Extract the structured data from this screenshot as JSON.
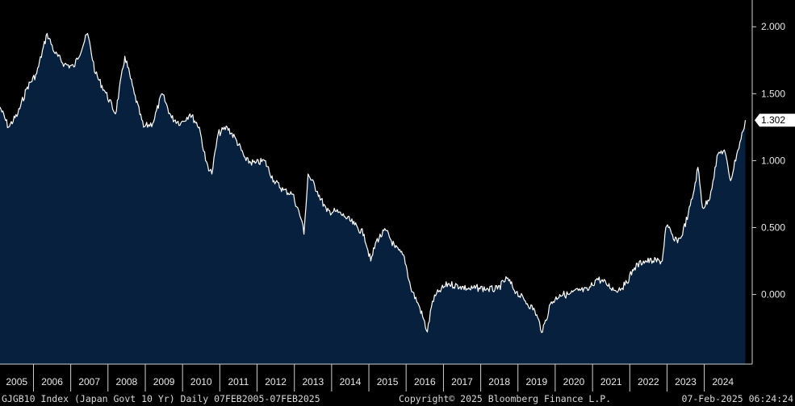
{
  "footer": {
    "left": "GJGB10 Index (Japan Govt 10 Yr)  Daily 07FEB2005-07FEB2025",
    "center": "Copyright© 2025 Bloomberg Finance L.P.",
    "right": "07-Feb-2025 06:24:24"
  },
  "colors": {
    "background": "#000000",
    "fill": "#06203d",
    "line": "#ffffff",
    "axis": "#d0d0d0"
  },
  "chart_data": {
    "type": "area",
    "series": [
      {
        "x": [
          "2005-02-07",
          "2005-05-01",
          "2005-08-01",
          "2005-11-01",
          "2006-02-01",
          "2006-05-15",
          "2006-08-01",
          "2006-11-01",
          "2007-02-01",
          "2007-06-15",
          "2007-09-01",
          "2007-12-01",
          "2008-03-15",
          "2008-06-15",
          "2008-09-15",
          "2008-12-15",
          "2009-03-15",
          "2009-06-15",
          "2009-09-15",
          "2009-12-15",
          "2010-03-15",
          "2010-06-15",
          "2010-08-15",
          "2010-10-15",
          "2010-12-15",
          "2011-03-15",
          "2011-06-15",
          "2011-09-15",
          "2011-12-15",
          "2012-03-15",
          "2012-06-15",
          "2012-09-15",
          "2012-12-15",
          "2013-03-15",
          "2013-04-05",
          "2013-05-15",
          "2013-08-15",
          "2013-11-15",
          "2014-02-15",
          "2014-05-15",
          "2014-08-15",
          "2014-11-15",
          "2015-01-20",
          "2015-03-15",
          "2015-06-15",
          "2015-09-15",
          "2015-12-15",
          "2016-02-15",
          "2016-05-15",
          "2016-07-27",
          "2016-09-15",
          "2016-11-15",
          "2017-02-15",
          "2017-06-15",
          "2017-09-15",
          "2017-12-15",
          "2018-03-15",
          "2018-06-15",
          "2018-09-15",
          "2018-12-15",
          "2019-03-15",
          "2019-06-15",
          "2019-08-30",
          "2019-11-15",
          "2020-02-15",
          "2020-05-15",
          "2020-08-15",
          "2020-11-15",
          "2021-02-15",
          "2021-05-15",
          "2021-08-15",
          "2021-11-15",
          "2022-02-15",
          "2022-05-15",
          "2022-08-15",
          "2022-11-15",
          "2022-12-20",
          "2023-01-15",
          "2023-03-15",
          "2023-05-15",
          "2023-07-28",
          "2023-09-15",
          "2023-10-31",
          "2023-12-15",
          "2024-02-15",
          "2024-05-15",
          "2024-07-15",
          "2024-09-15",
          "2024-11-15",
          "2025-01-15",
          "2025-02-07"
        ],
        "y": [
          1.4,
          1.25,
          1.35,
          1.55,
          1.65,
          1.95,
          1.8,
          1.72,
          1.7,
          1.95,
          1.65,
          1.52,
          1.35,
          1.78,
          1.5,
          1.25,
          1.28,
          1.5,
          1.32,
          1.28,
          1.35,
          1.25,
          1.0,
          0.9,
          1.2,
          1.25,
          1.15,
          1.0,
          0.98,
          1.0,
          0.85,
          0.78,
          0.75,
          0.55,
          0.45,
          0.9,
          0.77,
          0.62,
          0.62,
          0.58,
          0.52,
          0.45,
          0.25,
          0.4,
          0.48,
          0.35,
          0.28,
          0.05,
          -0.1,
          -0.28,
          -0.05,
          0.02,
          0.08,
          0.06,
          0.04,
          0.05,
          0.04,
          0.04,
          0.12,
          0.02,
          -0.05,
          -0.12,
          -0.28,
          -0.07,
          0.0,
          0.0,
          0.03,
          0.03,
          0.12,
          0.08,
          0.03,
          0.07,
          0.2,
          0.25,
          0.25,
          0.25,
          0.5,
          0.5,
          0.4,
          0.42,
          0.6,
          0.75,
          0.95,
          0.65,
          0.7,
          1.05,
          1.08,
          0.85,
          1.05,
          1.22,
          1.302
        ]
      }
    ],
    "x_ticks": [
      "2005",
      "2006",
      "2007",
      "2008",
      "2009",
      "2010",
      "2011",
      "2012",
      "2013",
      "2014",
      "2015",
      "2016",
      "2017",
      "2018",
      "2019",
      "2020",
      "2021",
      "2022",
      "2023",
      "2024"
    ],
    "y_ticks": [
      -0.0,
      0.5,
      1.0,
      1.5,
      2.0
    ],
    "y_tick_labels": [
      "0.000",
      "0.500",
      "1.000",
      "1.500",
      "2.000"
    ],
    "ylim": [
      -0.52,
      2.2
    ],
    "xlim": [
      "2005-02-07",
      "2025-04-15"
    ],
    "last_value_label": "1.302",
    "grid": false,
    "legend": false
  }
}
